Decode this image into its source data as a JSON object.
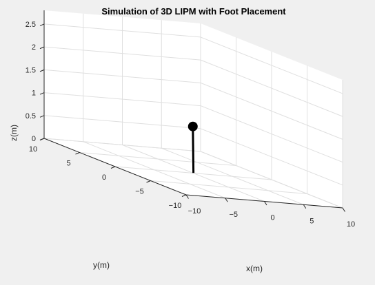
{
  "chart_data": {
    "type": "line3d",
    "title": "Simulation of 3D LIPM with Foot Placement",
    "xlabel": "x(m)",
    "ylabel": "y(m)",
    "zlabel": "z(m)",
    "xlim": [
      -10,
      10
    ],
    "ylim": [
      -10,
      10
    ],
    "zlim": [
      0,
      2.8
    ],
    "xticks": [
      -10,
      -5,
      0,
      5,
      10
    ],
    "yticks": [
      -10,
      -5,
      0,
      5,
      10
    ],
    "zticks": [
      0,
      0.5,
      1,
      1.5,
      2,
      2.5
    ],
    "grid": true,
    "pendulum": {
      "foot": {
        "x": 0.1,
        "y": 0.1,
        "z": 0
      },
      "mass": {
        "x": 0.3,
        "y": 0.4,
        "z": 1.0
      },
      "color": "#000000"
    },
    "colors": {
      "figure_bg": "#f0f0f0",
      "axes_bg": "#ffffff",
      "grid": "#dfdfdf",
      "axis": "#262626"
    }
  }
}
